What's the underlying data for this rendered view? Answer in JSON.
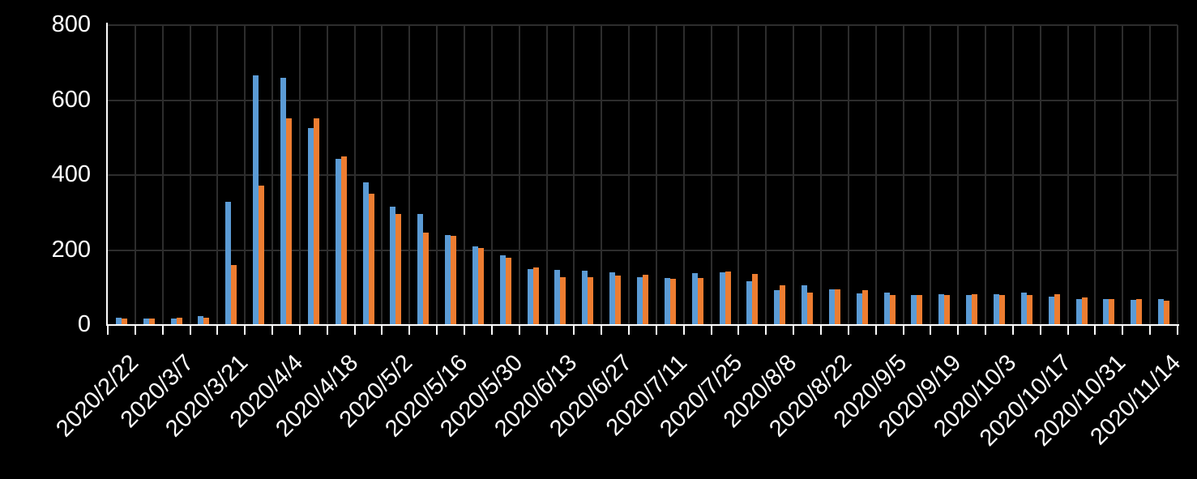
{
  "chart_data": {
    "type": "bar",
    "title": "",
    "legend": "none",
    "background_color": "#000000",
    "axis_color": "#ffffff",
    "text_color": "#ffffff",
    "gridline_color": "#2d2d2d",
    "grid": {
      "horizontal": true,
      "vertical": true
    },
    "n_columns": 39,
    "x_label_every": 2,
    "x_tick_labels": [
      "2020/2/22",
      "2020/3/7",
      "2020/3/21",
      "2020/4/4",
      "2020/4/18",
      "2020/5/2",
      "2020/5/16",
      "2020/5/30",
      "2020/6/13",
      "2020/6/27",
      "2020/7/11",
      "2020/7/25",
      "2020/8/8",
      "2020/8/22",
      "2020/9/5",
      "2020/9/19",
      "2020/10/3",
      "2020/10/17",
      "2020/10/31",
      "2020/11/14"
    ],
    "y_axis": {
      "min": 0,
      "max": 800,
      "tick_interval": 200,
      "tick_labels": [
        "0",
        "200",
        "400",
        "600",
        "800"
      ]
    },
    "series": [
      {
        "name": "blue",
        "color": "#5B9BD5",
        "values": [
          19,
          17,
          17,
          24,
          328,
          665,
          660,
          525,
          443,
          381,
          315,
          296,
          240,
          209,
          185,
          149,
          148,
          145,
          140,
          128,
          125,
          138,
          140,
          117,
          92,
          106,
          96,
          84,
          86,
          81,
          83,
          81,
          83,
          86,
          75,
          70,
          70,
          66,
          70
        ]
      },
      {
        "name": "orange",
        "color": "#ED7D31",
        "values": [
          17,
          18,
          19,
          19,
          160,
          371,
          551,
          552,
          449,
          350,
          297,
          247,
          237,
          206,
          180,
          153,
          127,
          128,
          131,
          134,
          123,
          126,
          143,
          137,
          107,
          87,
          96,
          92,
          81,
          81,
          81,
          82,
          80,
          79,
          83,
          74,
          70,
          69,
          65
        ]
      }
    ]
  }
}
